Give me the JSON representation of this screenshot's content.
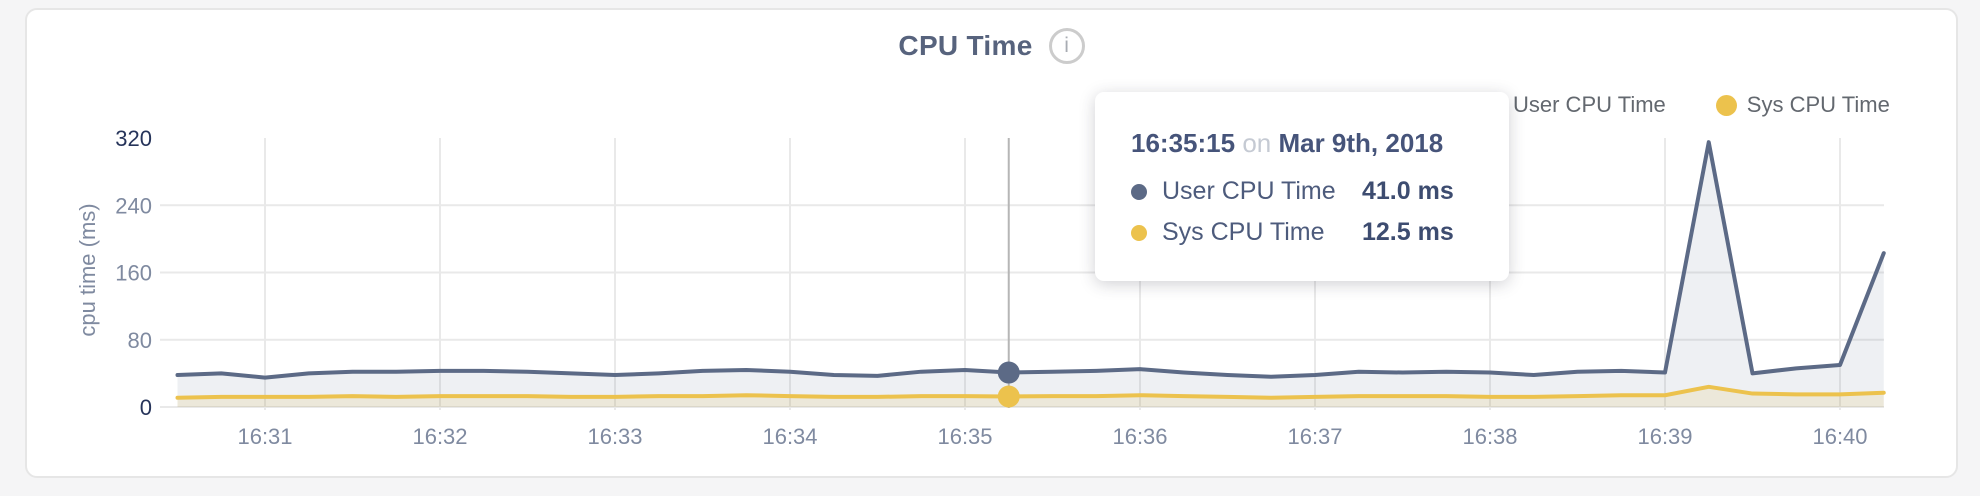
{
  "header": {
    "title": "CPU Time",
    "info_glyph": "i"
  },
  "y_axis_title": "cpu time (ms)",
  "colors": {
    "user": "#5c6a86",
    "user_fill": "rgba(92,106,134,0.10)",
    "sys": "#ecc24d",
    "sys_fill": "rgba(228,185,70,0.14)",
    "grid": "#e9e9e9",
    "crosshair": "#b6b6b6",
    "tick_muted": "#7f8aa0",
    "tick_dark": "#26345a"
  },
  "legend": {
    "items": [
      {
        "label": "User CPU Time",
        "color": "#5c6a86"
      },
      {
        "label": "Sys CPU Time",
        "color": "#ecc24d"
      }
    ]
  },
  "tooltip": {
    "time": "16:35:15",
    "connector": "on",
    "date": "Mar 9th, 2018",
    "rows": [
      {
        "label": "User CPU Time",
        "value": "41.0 ms",
        "color": "#5c6a86"
      },
      {
        "label": "Sys CPU Time",
        "value": "12.5 ms",
        "color": "#ecc24d"
      }
    ]
  },
  "chart_data": {
    "type": "line",
    "title": "CPU Time",
    "xlabel": "",
    "ylabel": "cpu time (ms)",
    "ylim": [
      0,
      320
    ],
    "y_ticks": [
      0,
      80,
      160,
      240,
      320
    ],
    "x_ticks": [
      "16:31",
      "16:32",
      "16:33",
      "16:34",
      "16:35",
      "16:36",
      "16:37",
      "16:38",
      "16:39",
      "16:40"
    ],
    "grid": true,
    "legend_position": "top-right",
    "hover_index": 19,
    "hover_time": "16:35:15",
    "x": [
      "16:30:30",
      "16:30:45",
      "16:31:00",
      "16:31:15",
      "16:31:30",
      "16:31:45",
      "16:32:00",
      "16:32:15",
      "16:32:30",
      "16:32:45",
      "16:33:00",
      "16:33:15",
      "16:33:30",
      "16:33:45",
      "16:34:00",
      "16:34:15",
      "16:34:30",
      "16:34:45",
      "16:35:00",
      "16:35:15",
      "16:35:30",
      "16:35:45",
      "16:36:00",
      "16:36:15",
      "16:36:30",
      "16:36:45",
      "16:37:00",
      "16:37:15",
      "16:37:30",
      "16:37:45",
      "16:38:00",
      "16:38:15",
      "16:38:30",
      "16:38:45",
      "16:39:00",
      "16:39:15",
      "16:39:30",
      "16:39:45",
      "16:40:00",
      "16:40:15"
    ],
    "series": [
      {
        "name": "User CPU Time",
        "unit": "ms",
        "color": "#5c6a86",
        "values": [
          38,
          40,
          35,
          40,
          42,
          42,
          43,
          43,
          42,
          40,
          38,
          40,
          43,
          44,
          42,
          38,
          37,
          42,
          44,
          41,
          42,
          43,
          45,
          41,
          38,
          36,
          38,
          42,
          41,
          42,
          41,
          38,
          42,
          43,
          41,
          315,
          40,
          46,
          50,
          183
        ]
      },
      {
        "name": "Sys CPU Time",
        "unit": "ms",
        "color": "#ecc24d",
        "values": [
          11,
          12,
          12,
          12,
          13,
          12,
          13,
          13,
          13,
          12,
          12,
          13,
          13,
          14,
          13,
          12,
          12,
          13,
          13,
          12.5,
          13,
          13,
          14,
          13,
          12,
          11,
          12,
          13,
          13,
          13,
          12,
          12,
          13,
          14,
          14,
          24,
          16,
          15,
          15,
          17
        ]
      }
    ]
  }
}
